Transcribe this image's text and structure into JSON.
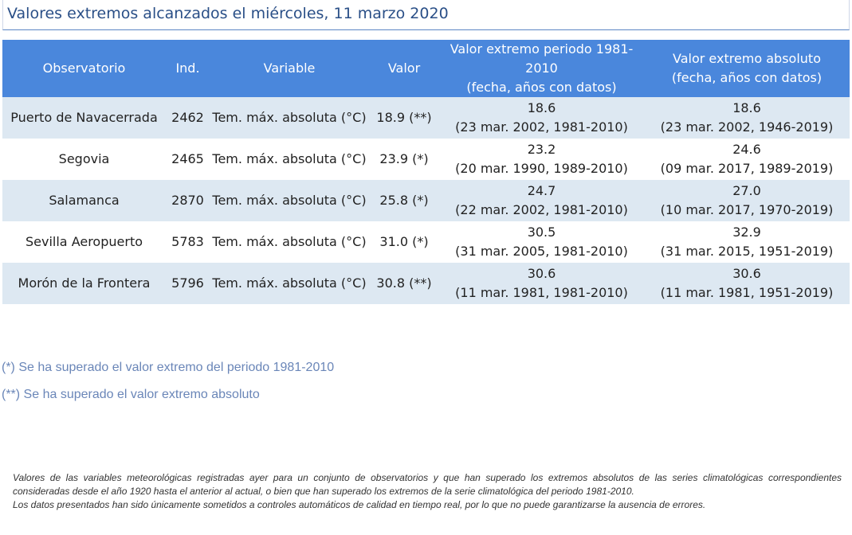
{
  "title": "Valores extremos alcanzados el miércoles, 11 marzo 2020",
  "table": {
    "headers": {
      "observatorio": "Observatorio",
      "ind": "Ind.",
      "variable": "Variable",
      "valor": "Valor",
      "periodo_line1": "Valor extremo periodo 1981-2010",
      "periodo_line2": "(fecha, años con datos)",
      "absoluto_line1": "Valor extremo absoluto",
      "absoluto_line2": "(fecha, años con datos)"
    },
    "rows": [
      {
        "observatorio": "Puerto de Navacerrada",
        "ind": "2462",
        "variable": "Tem. máx. absoluta (°C)",
        "valor": "18.9 (**)",
        "periodo_valor": "18.6",
        "periodo_detalle": "(23 mar. 2002, 1981-2010)",
        "absoluto_valor": "18.6",
        "absoluto_detalle": "(23 mar. 2002, 1946-2019)"
      },
      {
        "observatorio": "Segovia",
        "ind": "2465",
        "variable": "Tem. máx. absoluta (°C)",
        "valor": "23.9 (*)",
        "periodo_valor": "23.2",
        "periodo_detalle": "(20 mar. 1990, 1989-2010)",
        "absoluto_valor": "24.6",
        "absoluto_detalle": "(09 mar. 2017, 1989-2019)"
      },
      {
        "observatorio": "Salamanca",
        "ind": "2870",
        "variable": "Tem. máx. absoluta (°C)",
        "valor": "25.8 (*)",
        "periodo_valor": "24.7",
        "periodo_detalle": "(22 mar. 2002, 1981-2010)",
        "absoluto_valor": "27.0",
        "absoluto_detalle": "(10 mar. 2017, 1970-2019)"
      },
      {
        "observatorio": "Sevilla Aeropuerto",
        "ind": "5783",
        "variable": "Tem. máx. absoluta (°C)",
        "valor": "31.0 (*)",
        "periodo_valor": "30.5",
        "periodo_detalle": "(31 mar. 2005, 1981-2010)",
        "absoluto_valor": "32.9",
        "absoluto_detalle": "(31 mar. 2015, 1951-2019)"
      },
      {
        "observatorio": "Morón de la Frontera",
        "ind": "5796",
        "variable": "Tem. máx. absoluta (°C)",
        "valor": "30.8 (**)",
        "periodo_valor": "30.6",
        "periodo_detalle": "(11 mar. 1981, 1981-2010)",
        "absoluto_valor": "30.6",
        "absoluto_detalle": "(11 mar. 1981, 1951-2019)"
      }
    ]
  },
  "notes": {
    "single": "(*) Se ha superado el valor extremo del periodo 1981-2010",
    "double": "(**) Se ha superado el valor extremo absoluto"
  },
  "footnote": {
    "line1": "Valores de las variables meteorológicas registradas ayer para un conjunto de observatorios y que han superado los extremos absolutos de las series climatológicas correspondientes consideradas desde el año 1920 hasta el anterior al actual, o bien que han superado los extremos de la serie climatológica del periodo 1981-2010.",
    "line2": "Los datos presentados han sido únicamente sometidos a controles automáticos de calidad en tiempo real, por lo que no puede garantizarse la ausencia de errores."
  },
  "colors": {
    "header_bg": "#4a87dc",
    "stripe_bg": "#dde8f2",
    "title_color": "#2a4f87",
    "note_color": "#6a86b8"
  }
}
